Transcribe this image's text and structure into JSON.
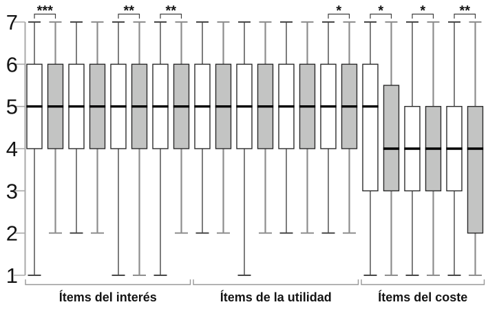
{
  "chart_data": {
    "type": "boxplot",
    "title": "",
    "xlabel": "",
    "ylabel": "",
    "ylim": [
      1,
      7
    ],
    "yticks": [
      1,
      2,
      3,
      4,
      5,
      6,
      7
    ],
    "grid": false,
    "legend": "none",
    "groups": [
      {
        "label": "Ítems del interés",
        "box_start": 0,
        "box_end": 7
      },
      {
        "label": "Ítems de la utilidad",
        "box_start": 8,
        "box_end": 15
      },
      {
        "label": "Ítems del coste",
        "box_start": 16,
        "box_end": 21
      }
    ],
    "boxes": [
      {
        "group": 0,
        "fill": "white",
        "whisker_low": 1,
        "q1": 4,
        "median": 5,
        "q3": 6,
        "whisker_high": 7
      },
      {
        "group": 0,
        "fill": "gray",
        "whisker_low": 2,
        "q1": 4,
        "median": 5,
        "q3": 6,
        "whisker_high": 7
      },
      {
        "group": 0,
        "fill": "white",
        "whisker_low": 2,
        "q1": 4,
        "median": 5,
        "q3": 6,
        "whisker_high": 7
      },
      {
        "group": 0,
        "fill": "gray",
        "whisker_low": 2,
        "q1": 4,
        "median": 5,
        "q3": 6,
        "whisker_high": 7
      },
      {
        "group": 0,
        "fill": "white",
        "whisker_low": 1,
        "q1": 4,
        "median": 5,
        "q3": 6,
        "whisker_high": 7
      },
      {
        "group": 0,
        "fill": "gray",
        "whisker_low": 1,
        "q1": 4,
        "median": 5,
        "q3": 6,
        "whisker_high": 7
      },
      {
        "group": 0,
        "fill": "white",
        "whisker_low": 1,
        "q1": 4,
        "median": 5,
        "q3": 6,
        "whisker_high": 7
      },
      {
        "group": 0,
        "fill": "gray",
        "whisker_low": 2,
        "q1": 4,
        "median": 5,
        "q3": 6,
        "whisker_high": 7
      },
      {
        "group": 1,
        "fill": "white",
        "whisker_low": 2,
        "q1": 4,
        "median": 5,
        "q3": 6,
        "whisker_high": 7
      },
      {
        "group": 1,
        "fill": "gray",
        "whisker_low": 2,
        "q1": 4,
        "median": 5,
        "q3": 6,
        "whisker_high": 7
      },
      {
        "group": 1,
        "fill": "white",
        "whisker_low": 1,
        "q1": 4,
        "median": 5,
        "q3": 6,
        "whisker_high": 7
      },
      {
        "group": 1,
        "fill": "gray",
        "whisker_low": 2,
        "q1": 4,
        "median": 5,
        "q3": 6,
        "whisker_high": 7
      },
      {
        "group": 1,
        "fill": "white",
        "whisker_low": 2,
        "q1": 4,
        "median": 5,
        "q3": 6,
        "whisker_high": 7
      },
      {
        "group": 1,
        "fill": "gray",
        "whisker_low": 2,
        "q1": 4,
        "median": 5,
        "q3": 6,
        "whisker_high": 7
      },
      {
        "group": 1,
        "fill": "white",
        "whisker_low": 2,
        "q1": 4,
        "median": 5,
        "q3": 6,
        "whisker_high": 7
      },
      {
        "group": 1,
        "fill": "gray",
        "whisker_low": 2,
        "q1": 4,
        "median": 5,
        "q3": 6,
        "whisker_high": 7
      },
      {
        "group": 2,
        "fill": "white",
        "whisker_low": 1,
        "q1": 3,
        "median": 5,
        "q3": 6,
        "whisker_high": 7
      },
      {
        "group": 2,
        "fill": "gray",
        "whisker_low": 1,
        "q1": 3,
        "median": 4,
        "q3": 5.5,
        "whisker_high": 7
      },
      {
        "group": 2,
        "fill": "white",
        "whisker_low": 1,
        "q1": 3,
        "median": 4,
        "q3": 5,
        "whisker_high": 7
      },
      {
        "group": 2,
        "fill": "gray",
        "whisker_low": 1,
        "q1": 3,
        "median": 4,
        "q3": 5,
        "whisker_high": 7
      },
      {
        "group": 2,
        "fill": "white",
        "whisker_low": 1,
        "q1": 3,
        "median": 4,
        "q3": 5,
        "whisker_high": 7
      },
      {
        "group": 2,
        "fill": "gray",
        "whisker_low": 1,
        "q1": 2,
        "median": 4,
        "q3": 5,
        "whisker_high": 7
      }
    ],
    "significance_brackets": [
      {
        "boxes": [
          0,
          1
        ],
        "label": "***"
      },
      {
        "boxes": [
          4,
          5
        ],
        "label": "**"
      },
      {
        "boxes": [
          6,
          7
        ],
        "label": "**"
      },
      {
        "boxes": [
          14,
          15
        ],
        "label": "*"
      },
      {
        "boxes": [
          16,
          17
        ],
        "label": "*"
      },
      {
        "boxes": [
          18,
          19
        ],
        "label": "*"
      },
      {
        "boxes": [
          20,
          21
        ],
        "label": "**"
      }
    ],
    "colors": {
      "background": "#ffffff",
      "white_box_fill": "#ffffff",
      "gray_box_fill": "#c3c4c3",
      "box_stroke": "#2a2a2a",
      "median": "#000000",
      "axis": "#a9a9a9",
      "whisker_dark": "#454545",
      "whisker_gray": "#8d8d8d",
      "group_bracket": "#979797",
      "sig_bracket": "#3d3d3d",
      "text": "#141414"
    }
  }
}
